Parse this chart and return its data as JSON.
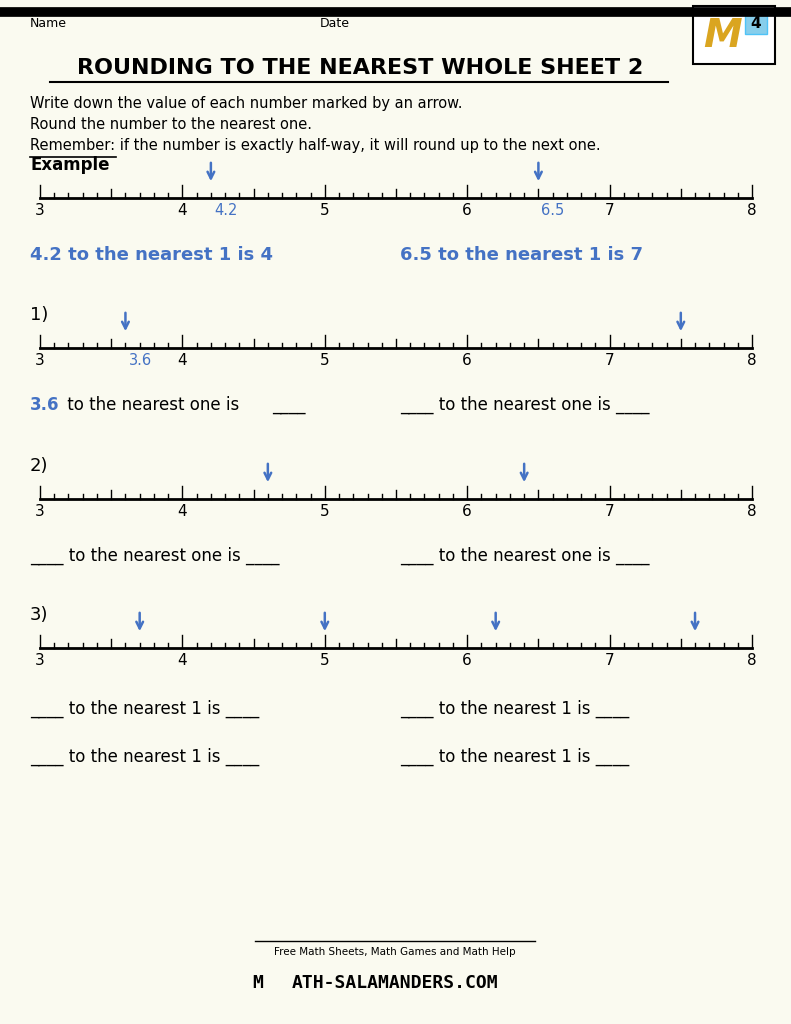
{
  "title": "ROUNDING TO THE NEAREST WHOLE SHEET 2",
  "bg_color": "#FAFAF0",
  "blue_color": "#4472C4",
  "text_color": "#000000",
  "instructions": [
    "Write down the value of each number marked by an arrow.",
    "Round the number to the nearest one.",
    "Remember: if the number is exactly half-way, it will round up to the next one."
  ],
  "example_arrows": [
    4.2,
    6.5
  ],
  "example_arrow_labels": [
    "4.2",
    "6.5"
  ],
  "example_answer_left": "4.2 to the nearest 1 is 4",
  "example_answer_right": "6.5 to the nearest 1 is 7",
  "q1_arrows": [
    3.6,
    7.5
  ],
  "q1_label": "3.6",
  "q2_arrows": [
    4.6,
    6.4
  ],
  "q3_arrows": [
    3.7,
    5.0,
    6.2,
    7.6
  ],
  "vmin": 3,
  "vmax": 8
}
